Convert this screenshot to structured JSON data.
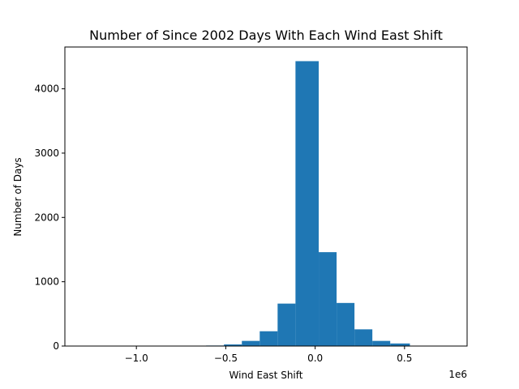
{
  "chart_data": {
    "type": "bar",
    "title": "Number of Since 2002 Days With Each Wind East Shift",
    "xlabel": "Wind East Shift",
    "ylabel": "Number of Days",
    "x_offset_label": "1e6",
    "xlim": [
      -1.4,
      0.85
    ],
    "ylim": [
      0,
      4650
    ],
    "x_ticks": [
      -1.0,
      -0.5,
      0.0,
      0.5
    ],
    "x_tick_labels": [
      "−1.0",
      "−0.5",
      "0.0",
      "0.5"
    ],
    "y_ticks": [
      0,
      1000,
      2000,
      3000,
      4000
    ],
    "y_tick_labels": [
      "0",
      "1000",
      "2000",
      "3000",
      "4000"
    ],
    "grid": false,
    "bar_color": "#1f77b4",
    "bins": [
      {
        "x0": -1.31,
        "x1": -1.21,
        "count": 1
      },
      {
        "x0": -1.21,
        "x1": -1.11,
        "count": 0
      },
      {
        "x0": -1.11,
        "x1": -1.01,
        "count": 0
      },
      {
        "x0": -1.01,
        "x1": -0.91,
        "count": 1
      },
      {
        "x0": -0.91,
        "x1": -0.81,
        "count": 1
      },
      {
        "x0": -0.81,
        "x1": -0.71,
        "count": 2
      },
      {
        "x0": -0.71,
        "x1": -0.61,
        "count": 3
      },
      {
        "x0": -0.61,
        "x1": -0.51,
        "count": 8
      },
      {
        "x0": -0.51,
        "x1": -0.41,
        "count": 25
      },
      {
        "x0": -0.41,
        "x1": -0.31,
        "count": 80
      },
      {
        "x0": -0.31,
        "x1": -0.21,
        "count": 230
      },
      {
        "x0": -0.21,
        "x1": -0.11,
        "count": 660
      },
      {
        "x0": -0.11,
        "x1": 0.02,
        "count": 4430
      },
      {
        "x0": 0.02,
        "x1": 0.12,
        "count": 1460
      },
      {
        "x0": 0.12,
        "x1": 0.22,
        "count": 670
      },
      {
        "x0": 0.22,
        "x1": 0.32,
        "count": 260
      },
      {
        "x0": 0.32,
        "x1": 0.42,
        "count": 80
      },
      {
        "x0": 0.42,
        "x1": 0.53,
        "count": 40
      },
      {
        "x0": 0.53,
        "x1": 0.63,
        "count": 5
      },
      {
        "x0": 0.63,
        "x1": 0.73,
        "count": 2
      }
    ]
  }
}
